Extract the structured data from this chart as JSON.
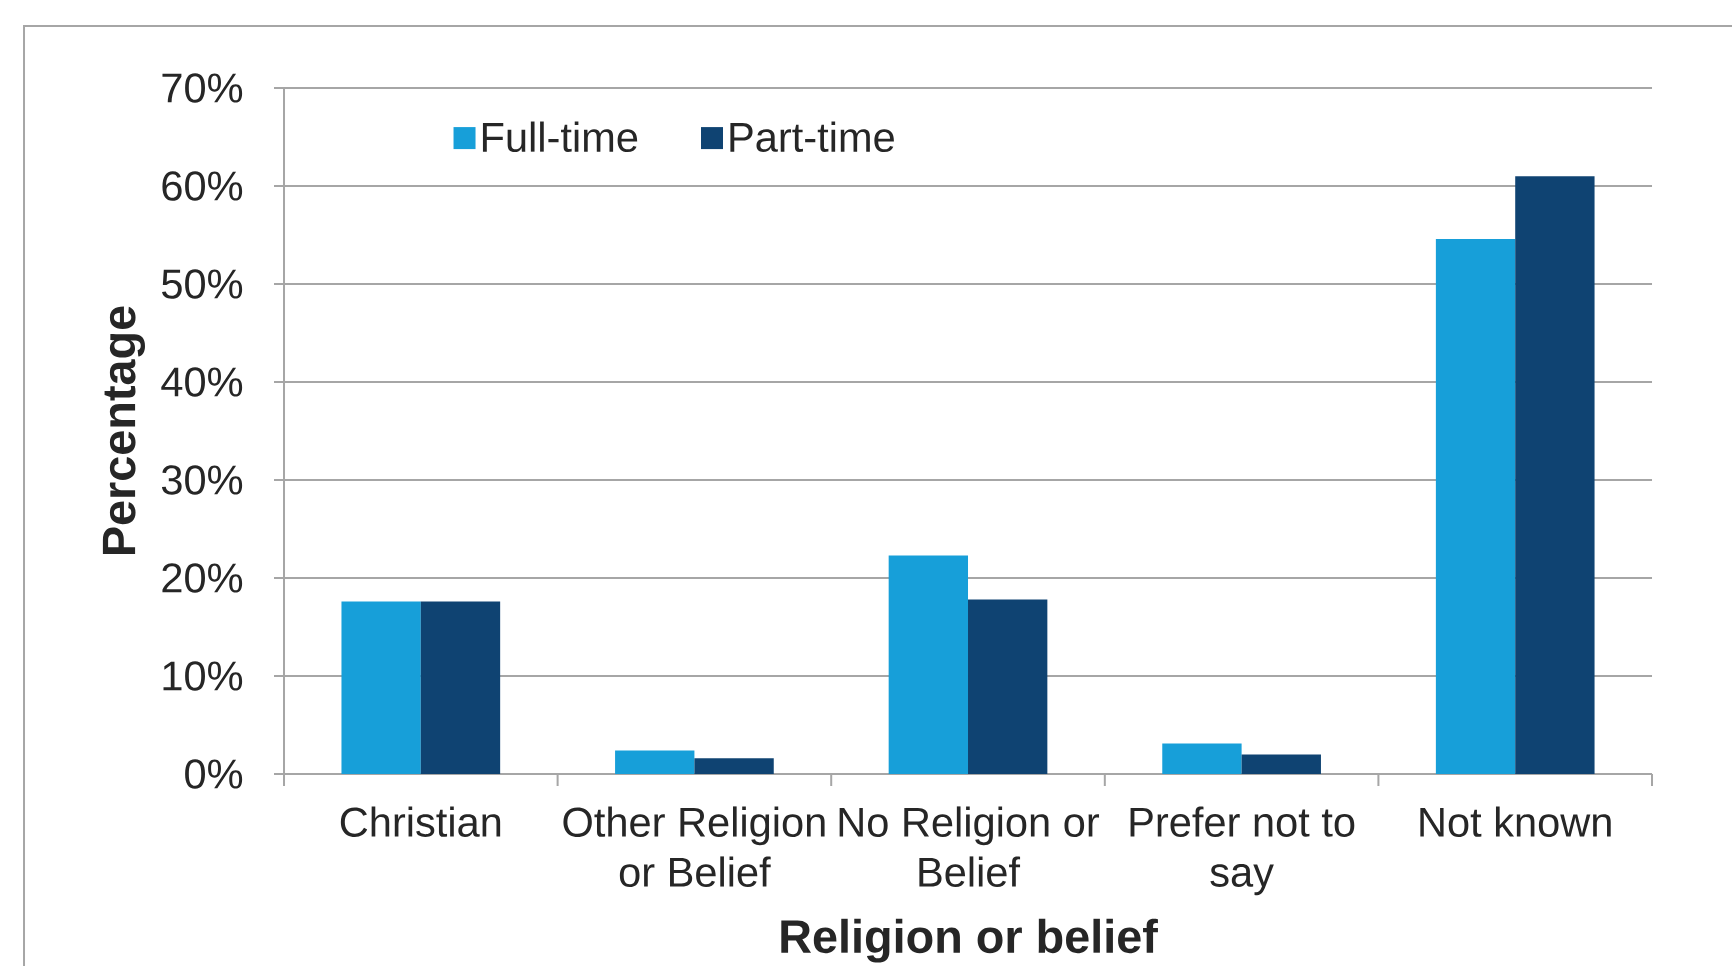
{
  "chart_data": {
    "type": "bar",
    "xlabel": "Religion or belief",
    "ylabel": "Percentage",
    "categories": [
      "Christian",
      "Other Religion or Belief",
      "No Religion or Belief",
      "Prefer not to say",
      "Not known"
    ],
    "series": [
      {
        "name": "Full-time",
        "color": "#179fd9",
        "values": [
          17.6,
          2.4,
          22.3,
          3.1,
          54.6
        ]
      },
      {
        "name": "Part-time",
        "color": "#0f4372",
        "values": [
          17.6,
          1.6,
          17.8,
          2.0,
          61.0
        ]
      }
    ],
    "ylim": [
      0,
      70
    ],
    "yticks": [
      {
        "value": 0,
        "label": "0%"
      },
      {
        "value": 10,
        "label": "10%"
      },
      {
        "value": 20,
        "label": "20%"
      },
      {
        "value": 30,
        "label": "30%"
      },
      {
        "value": 40,
        "label": "40%"
      },
      {
        "value": 50,
        "label": "50%"
      },
      {
        "value": 60,
        "label": "60%"
      },
      {
        "value": 70,
        "label": "70%"
      }
    ],
    "grid": "y",
    "legend": "top"
  }
}
